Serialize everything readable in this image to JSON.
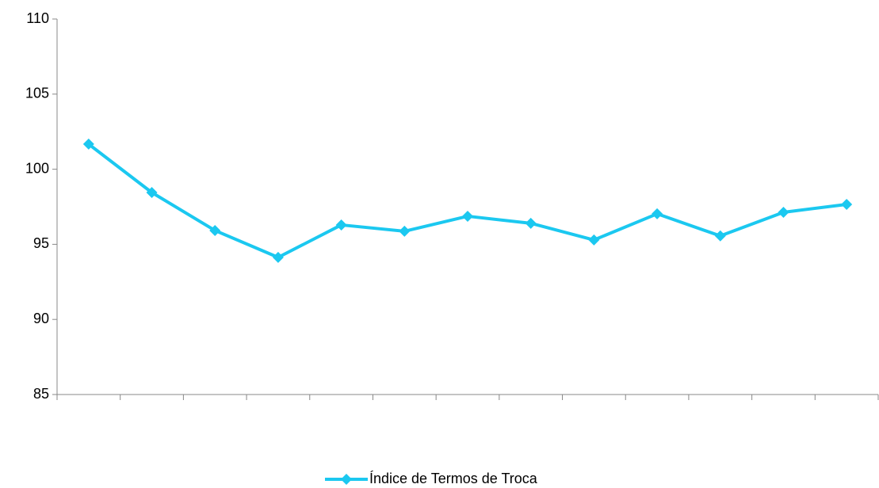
{
  "chart_data": {
    "type": "line",
    "categories": [
      null,
      null,
      null,
      null,
      null,
      null,
      null,
      null,
      null,
      null,
      null,
      null,
      null
    ],
    "series": [
      {
        "name": "Índice de Termos de Troca",
        "color": "#1bc8f0",
        "values": [
          101.67,
          98.45,
          95.92,
          94.13,
          96.29,
          95.87,
          96.87,
          96.4,
          95.29,
          97.03,
          95.56,
          97.13,
          97.66
        ]
      }
    ],
    "ylim": [
      85,
      110
    ],
    "yticks": [
      85,
      90,
      95,
      100,
      105,
      110
    ],
    "grid": false,
    "legend": "bottom"
  }
}
